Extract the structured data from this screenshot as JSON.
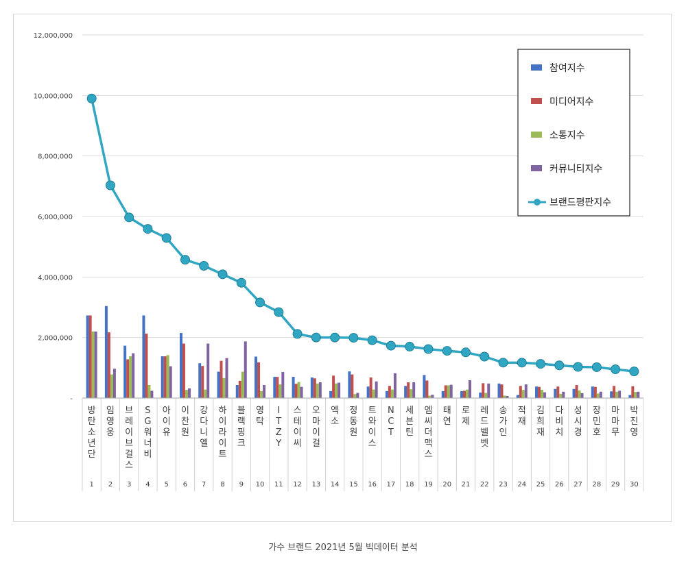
{
  "caption": "가수 브랜드 2021년 5월 빅데이터 분석",
  "chart_data": {
    "type": "bar",
    "title": "",
    "xlabel": "",
    "ylabel": "",
    "ylim": [
      0,
      12000000
    ],
    "yticks": [
      0,
      2000000,
      4000000,
      6000000,
      8000000,
      10000000,
      12000000
    ],
    "ytick_labels": [
      "-",
      "2,000,000",
      "4,000,000",
      "6,000,000",
      "8,000,000",
      "10,000,000",
      "12,000,000"
    ],
    "grid": true,
    "legend_position": "top-right",
    "categories": [
      "방탄소년단",
      "임영웅",
      "브레이브걸스",
      "SG워너비",
      "아이유",
      "이찬원",
      "강다니엘",
      "하이라이트",
      "블랙핑크",
      "영탁",
      "ITZY",
      "스테이씨",
      "오마이걸",
      "엑소",
      "정동원",
      "트와이스",
      "NCT",
      "세븐틴",
      "엠씨더맥스",
      "태연",
      "로제",
      "레드벨벳",
      "송가인",
      "적재",
      "김희재",
      "다비치",
      "성시경",
      "장민호",
      "마마무",
      "박진영"
    ],
    "ranks": [
      "1",
      "2",
      "3",
      "4",
      "5",
      "6",
      "7",
      "8",
      "9",
      "10",
      "11",
      "12",
      "13",
      "14",
      "15",
      "16",
      "17",
      "18",
      "19",
      "20",
      "21",
      "22",
      "23",
      "24",
      "25",
      "26",
      "27",
      "28",
      "29",
      "30"
    ],
    "series": [
      {
        "name": "참여지수",
        "kind": "bar",
        "color": "#4472c4",
        "values": [
          2730000,
          3040000,
          1730000,
          2730000,
          1380000,
          2150000,
          1150000,
          870000,
          430000,
          1370000,
          700000,
          700000,
          680000,
          230000,
          880000,
          380000,
          230000,
          400000,
          760000,
          230000,
          230000,
          180000,
          480000,
          100000,
          380000,
          300000,
          300000,
          380000,
          220000,
          100000
        ]
      },
      {
        "name": "미디어지수",
        "kind": "bar",
        "color": "#c0504d",
        "values": [
          2730000,
          2170000,
          1280000,
          2130000,
          1380000,
          1800000,
          1060000,
          1230000,
          570000,
          1180000,
          700000,
          470000,
          650000,
          740000,
          780000,
          680000,
          400000,
          520000,
          580000,
          420000,
          240000,
          490000,
          450000,
          400000,
          370000,
          380000,
          430000,
          370000,
          400000,
          390000
        ]
      },
      {
        "name": "소통지수",
        "kind": "bar",
        "color": "#9bbb59",
        "values": [
          2200000,
          780000,
          1380000,
          430000,
          1420000,
          270000,
          280000,
          660000,
          870000,
          230000,
          450000,
          530000,
          480000,
          480000,
          130000,
          280000,
          280000,
          290000,
          80000,
          420000,
          280000,
          170000,
          80000,
          270000,
          270000,
          140000,
          250000,
          150000,
          210000,
          200000
        ]
      },
      {
        "name": "커뮤니티지수",
        "kind": "bar",
        "color": "#8064a2",
        "values": [
          2200000,
          970000,
          1480000,
          240000,
          1050000,
          320000,
          1800000,
          1320000,
          1870000,
          430000,
          860000,
          370000,
          520000,
          510000,
          170000,
          550000,
          820000,
          520000,
          110000,
          440000,
          590000,
          480000,
          70000,
          450000,
          190000,
          210000,
          160000,
          210000,
          240000,
          210000
        ]
      },
      {
        "name": "브랜드평판지수",
        "kind": "line",
        "color": "#31a6c3",
        "values": [
          9900000,
          7030000,
          5970000,
          5590000,
          5290000,
          4570000,
          4370000,
          4090000,
          3810000,
          3160000,
          2840000,
          2120000,
          2000000,
          2000000,
          1990000,
          1910000,
          1730000,
          1700000,
          1620000,
          1560000,
          1510000,
          1370000,
          1170000,
          1170000,
          1130000,
          1080000,
          1030000,
          1020000,
          950000,
          880000
        ]
      }
    ]
  }
}
